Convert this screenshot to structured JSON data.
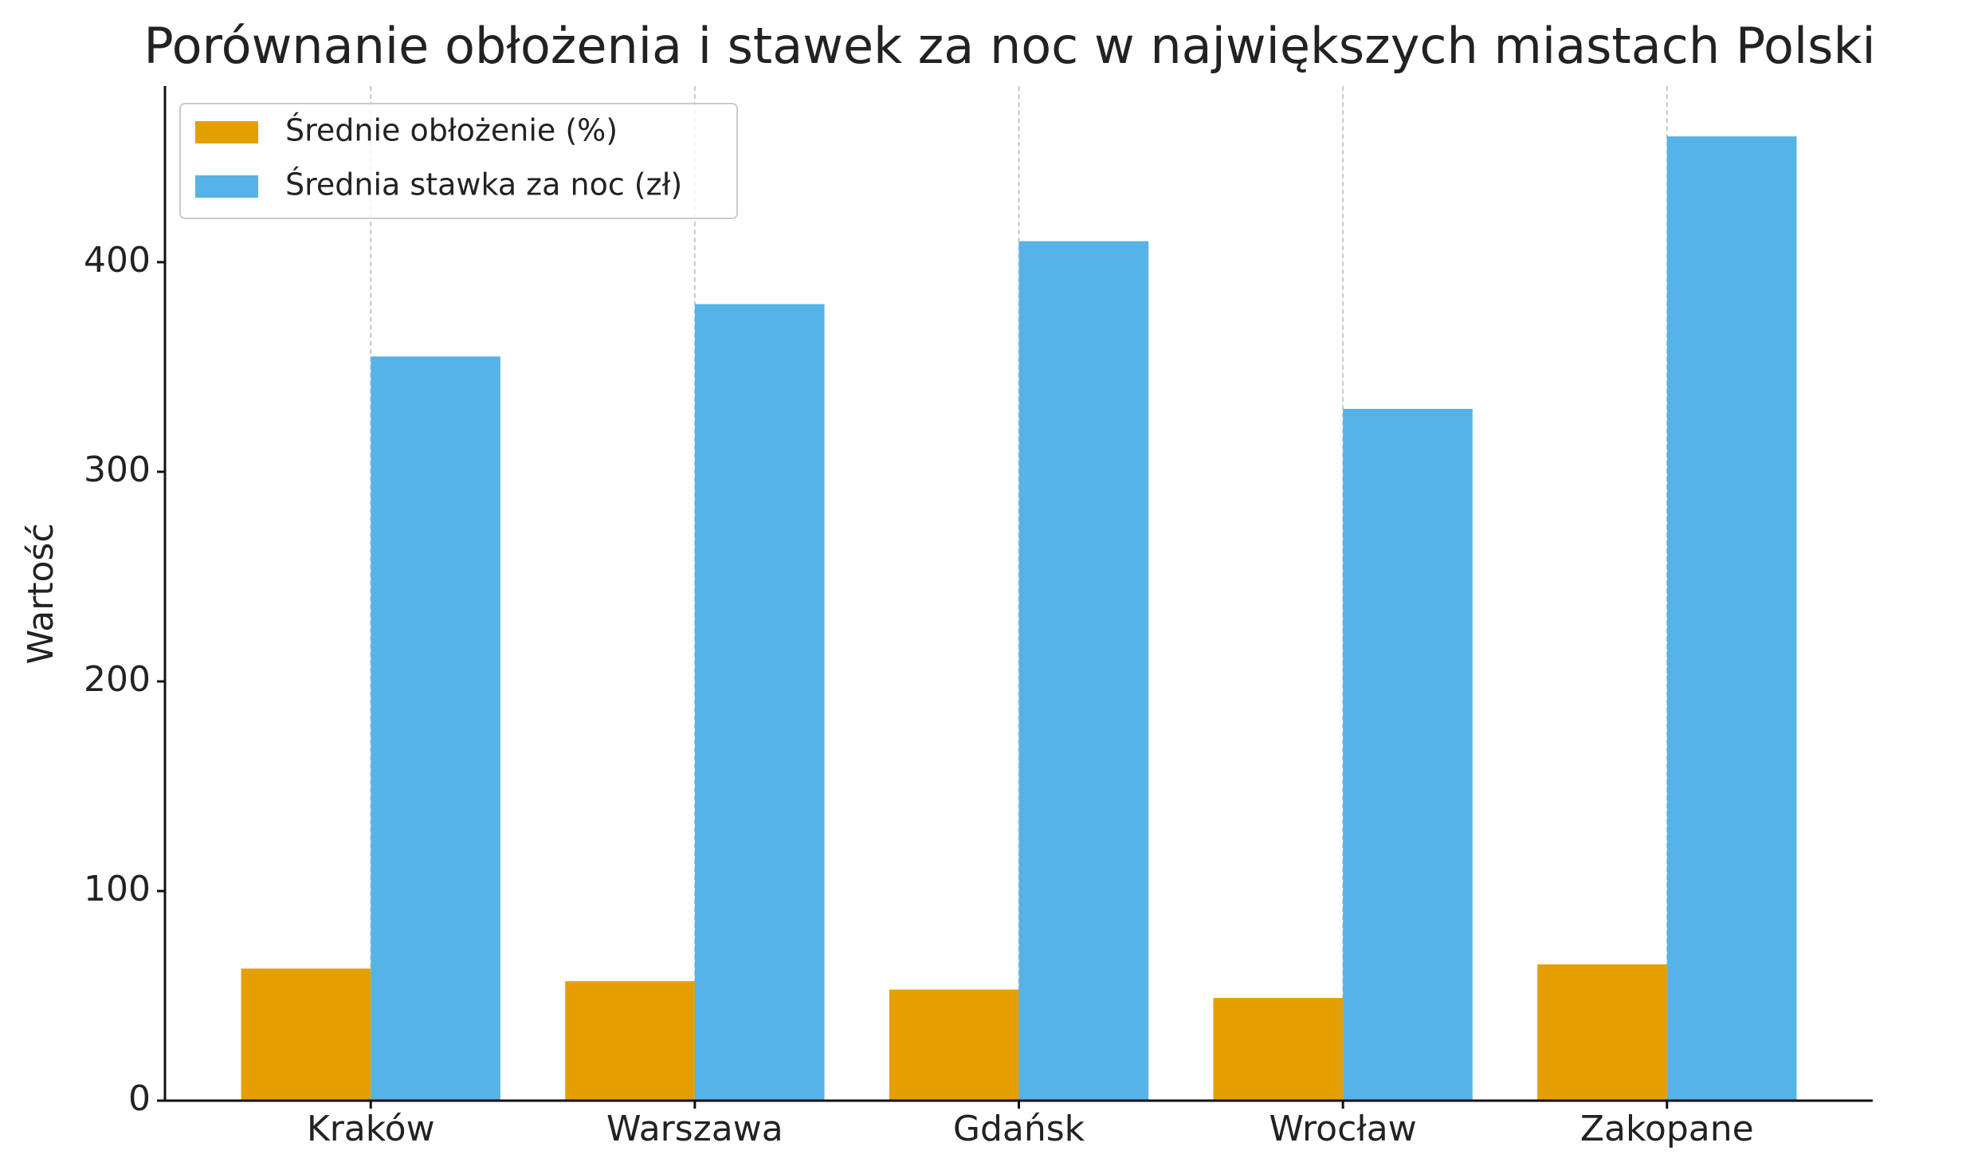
{
  "chart_data": {
    "type": "bar",
    "title": "Porównanie obłożenia i stawek za noc w największych miastach Polski",
    "y_label": "Wartość",
    "categories": [
      "Kraków",
      "Warszawa",
      "Gdańsk",
      "Wrocław",
      "Zakopane"
    ],
    "series": [
      {
        "name": "Średnie obłożenie (%)",
        "color": "#e69f00",
        "values": [
          63,
          57,
          53,
          49,
          65
        ]
      },
      {
        "name": "Średnia stawka za noc (zł)",
        "color": "#56b3e8",
        "values": [
          355,
          380,
          410,
          330,
          460
        ]
      }
    ],
    "ylim": [
      0,
      484
    ],
    "yticks": [
      0,
      100,
      200,
      300,
      400
    ],
    "grid": "x",
    "legend": "upper left"
  }
}
